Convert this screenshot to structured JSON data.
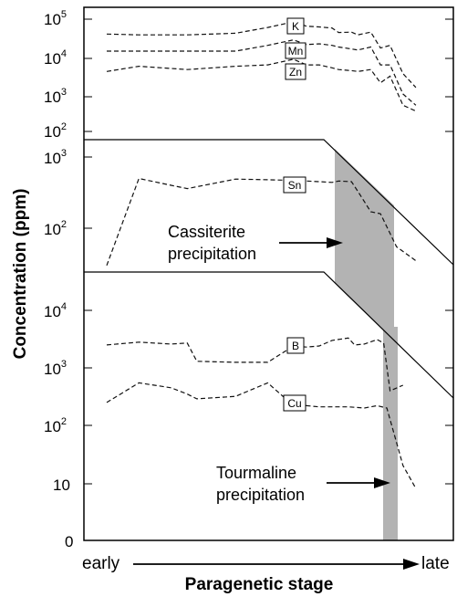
{
  "chart_data": [
    {
      "type": "line",
      "panel": "top",
      "y_scale": "log",
      "ylim": [
        100,
        100000
      ],
      "yticks": [
        {
          "base": "10",
          "exp": "5"
        },
        {
          "base": "10",
          "exp": "4"
        },
        {
          "base": "10",
          "exp": "3"
        },
        {
          "base": "10",
          "exp": "2"
        }
      ],
      "xlim": [
        0,
        100
      ],
      "series": [
        {
          "name": "K",
          "x": [
            0,
            10,
            25,
            40,
            50,
            58,
            62,
            66,
            70,
            72,
            76,
            78,
            82,
            85,
            88,
            92,
            96
          ],
          "values": [
            40000,
            38000,
            38000,
            42000,
            60000,
            85000,
            65000,
            62000,
            58000,
            44000,
            45000,
            38000,
            45000,
            17000,
            20000,
            3500,
            1500
          ]
        },
        {
          "name": "Mn",
          "x": [
            0,
            10,
            25,
            40,
            50,
            58,
            62,
            66,
            70,
            72,
            76,
            78,
            82,
            85,
            88,
            92,
            96
          ],
          "values": [
            14000,
            14000,
            14000,
            14000,
            20000,
            28000,
            21000,
            22000,
            20000,
            18000,
            16000,
            15000,
            18000,
            6000,
            6000,
            1000,
            500
          ]
        },
        {
          "name": "Zn",
          "x": [
            0,
            10,
            25,
            40,
            50,
            58,
            62,
            66,
            70,
            72,
            76,
            78,
            82,
            85,
            88,
            92,
            96
          ],
          "values": [
            4000,
            5500,
            4500,
            5500,
            6000,
            8500,
            6000,
            6000,
            5000,
            4500,
            4200,
            4000,
            4500,
            2000,
            3000,
            500,
            350
          ]
        }
      ]
    },
    {
      "type": "line",
      "panel": "middle",
      "y_scale": "log",
      "ylim": [
        10,
        1000
      ],
      "yticks": [
        {
          "base": "10",
          "exp": "3"
        },
        {
          "base": "10",
          "exp": "2"
        }
      ],
      "xlim": [
        0,
        100
      ],
      "series": [
        {
          "name": "Sn",
          "x": [
            0,
            10,
            20,
            25,
            40,
            50,
            58,
            62,
            66,
            70,
            72,
            76,
            78,
            82,
            85,
            90,
            96
          ],
          "values": [
            30,
            500,
            400,
            360,
            490,
            480,
            470,
            460,
            450,
            440,
            460,
            450,
            330,
            170,
            160,
            55,
            35
          ]
        }
      ],
      "annotations": [
        {
          "text": [
            "Cassiterite",
            "precipitation"
          ],
          "band_x": [
            71,
            79
          ]
        }
      ]
    },
    {
      "type": "line",
      "panel": "bottom",
      "y_scale": "log",
      "ylim": [
        0,
        10000
      ],
      "yticks": [
        "10^4",
        "10^3",
        "10^2",
        "10",
        "0"
      ],
      "xlim": [
        0,
        100
      ],
      "series": [
        {
          "name": "B",
          "x": [
            0,
            10,
            20,
            25,
            28,
            40,
            50,
            58,
            62,
            66,
            70,
            75,
            77,
            80,
            84,
            86,
            88,
            92
          ],
          "values": [
            2500,
            2800,
            2600,
            2700,
            1300,
            1250,
            1250,
            2400,
            2300,
            2400,
            3000,
            3300,
            2500,
            2600,
            3100,
            2700,
            400,
            500
          ]
        },
        {
          "name": "Cu",
          "x": [
            0,
            10,
            20,
            25,
            28,
            40,
            50,
            58,
            62,
            66,
            70,
            75,
            80,
            84,
            87,
            92,
            96
          ],
          "values": [
            250,
            550,
            450,
            350,
            290,
            320,
            550,
            220,
            220,
            210,
            210,
            210,
            200,
            220,
            200,
            20,
            8
          ]
        }
      ],
      "annotations": [
        {
          "text": [
            "Tourmaline",
            "precipitation"
          ],
          "band_x": [
            88,
            91
          ]
        }
      ]
    }
  ],
  "labels": {
    "ylabel": "Concentration (ppm)",
    "xlabel": "Paragenetic stage",
    "x_start": "early",
    "x_end": "late",
    "cassiterite_line1": "Cassiterite",
    "cassiterite_line2": "precipitation",
    "tourmaline_line1": "Tourmaline",
    "tourmaline_line2": "precipitation",
    "k": "K",
    "mn": "Mn",
    "zn": "Zn",
    "sn": "Sn",
    "b": "B",
    "cu": "Cu",
    "tick_10": "10",
    "tick_0": "0",
    "tick_base": "10",
    "exp_5": "5",
    "exp_4": "4",
    "exp_3": "3",
    "exp_2": "2"
  },
  "colors": {
    "band": "#b3b3b3",
    "line": "#111111"
  }
}
